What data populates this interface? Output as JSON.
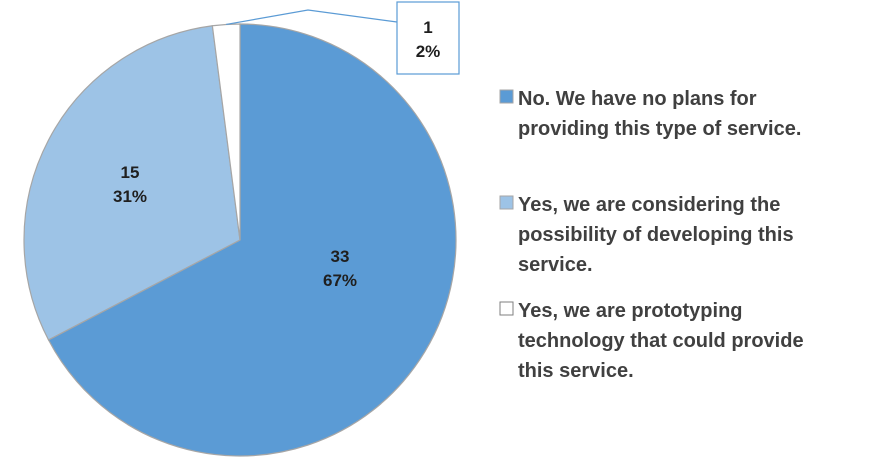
{
  "chart_data": {
    "type": "pie",
    "slices": [
      {
        "legend_label": "No. We have no plans for providing this type of service.",
        "value": 33,
        "percent_label": "67%",
        "color": "#5b9bd5"
      },
      {
        "legend_label": "Yes, we are considering the possibility of developing this service.",
        "value": 15,
        "percent_label": "31%",
        "color": "#9dc3e6"
      },
      {
        "legend_label": "Yes, we are prototyping technology that could provide this service.",
        "value": 1,
        "percent_label": "2%",
        "color": "#ffffff"
      }
    ],
    "legend_position": "right",
    "slice_border_color": "#a6a6a6",
    "callout_border_color": "#5b9bd5"
  }
}
